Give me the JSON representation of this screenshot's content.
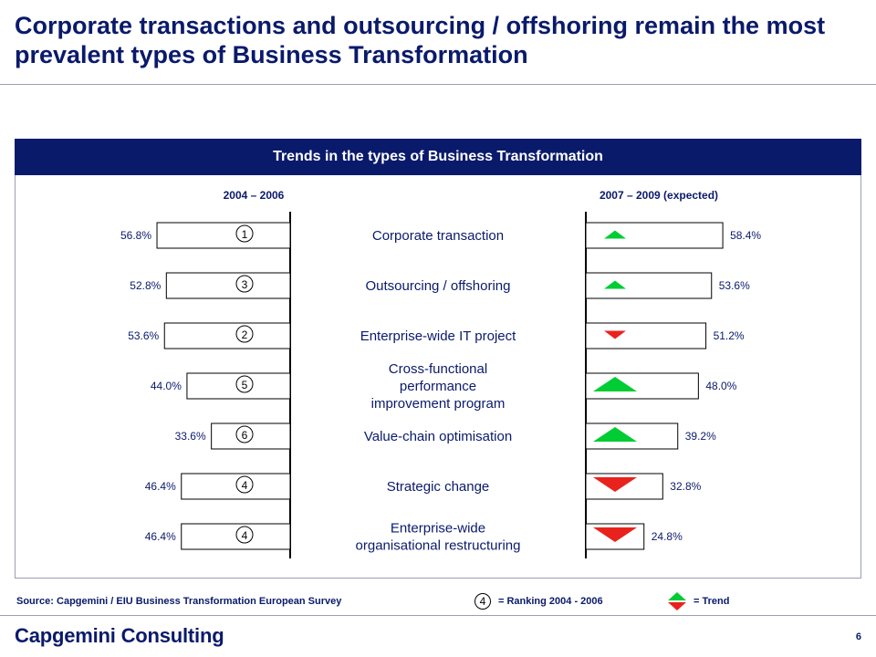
{
  "title": "Corporate transactions and outsourcing / offshoring remain the most prevalent types of Business Transformation",
  "panel_title": "Trends in the types of Business Transformation",
  "chart_data": {
    "type": "bar",
    "orientation": "horizontal-butterfly",
    "series": [
      {
        "name": "2004 – 2006",
        "values": [
          56.8,
          52.8,
          53.6,
          44.0,
          33.6,
          46.4,
          46.4
        ],
        "labels": [
          "56.8%",
          "52.8%",
          "53.6%",
          "44.0%",
          "33.6%",
          "46.4%",
          "46.4%"
        ],
        "ranking": [
          1,
          3,
          2,
          5,
          6,
          4,
          4
        ]
      },
      {
        "name": "2007 – 2009 (expected)",
        "values": [
          58.4,
          53.6,
          51.2,
          48.0,
          39.2,
          32.8,
          24.8
        ],
        "labels": [
          "58.4%",
          "53.6%",
          "51.2%",
          "48.0%",
          "39.2%",
          "32.8%",
          "24.8%"
        ],
        "trend": [
          "up",
          "up",
          "down",
          "up",
          "up",
          "down",
          "down"
        ],
        "trend_magnitude": [
          "small",
          "small",
          "small",
          "large",
          "large",
          "large",
          "large"
        ]
      }
    ],
    "categories": [
      [
        "Corporate transaction"
      ],
      [
        "Outsourcing / offshoring"
      ],
      [
        "Enterprise-wide IT project"
      ],
      [
        "Cross-functional",
        "performance",
        "improvement program"
      ],
      [
        "Value-chain optimisation"
      ],
      [
        "Strategic change"
      ],
      [
        "Enterprise-wide",
        "organisational restructuring"
      ]
    ],
    "xlim": [
      0,
      60
    ],
    "colors": {
      "up": "#00cc33",
      "down": "#e8231e",
      "bar_fill": "#ffffff",
      "bar_stroke": "#000000",
      "axis": "#000000"
    }
  },
  "footer": {
    "source": "Source: Capgemini / EIU Business Transformation European Survey",
    "legend_rank_example": "4",
    "legend_rank_text": "= Ranking 2004 - 2006",
    "legend_trend_text": "= Trend"
  },
  "logo": "Capgemini Consulting",
  "page_number": "6"
}
